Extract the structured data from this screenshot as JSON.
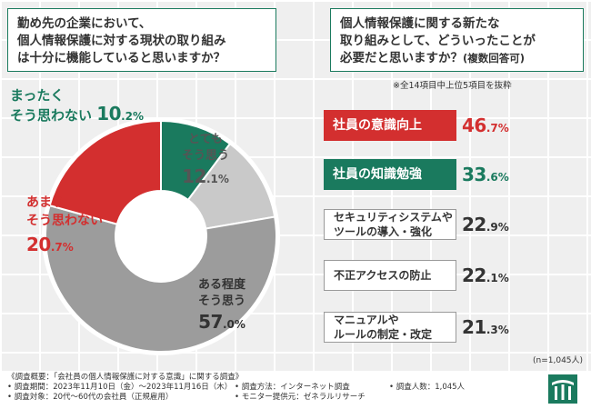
{
  "left_question": {
    "lines": [
      "勤め先の企業において、",
      "個人情報保護に対する現状の取り組み",
      "は十分に機能していると思いますか？"
    ]
  },
  "right_question": {
    "line1": "個人情報保護に関する新たな",
    "line2": "取り組みとして、どういったことが",
    "line3_main": "必要だと思いますか？",
    "line3_sub": "(複数回答可)"
  },
  "excerpt_note": "※全14項目中上位5項目を抜粋",
  "n_note": "(n=1,045人)",
  "colors": {
    "red": "#d32f2f",
    "green": "#1a7a5e",
    "gray_dark": "#9c9c9c",
    "gray_light": "#c9c9c9",
    "pie_bg": "#ffffff"
  },
  "chart_data": [
    {
      "type": "pie",
      "title": "勤め先の企業において、個人情報保護に対する現状の取り組みは十分に機能していると思いますか？",
      "slices": [
        {
          "label_lines": [
            "まったく",
            "そう思わない"
          ],
          "value": 10.2,
          "pct_int": "10",
          "pct_dec": ".2",
          "unit": "%"
        },
        {
          "label_lines": [
            "とても",
            "そう思う"
          ],
          "value": 12.1,
          "pct_int": "12",
          "pct_dec": ".1",
          "unit": "%"
        },
        {
          "label_lines": [
            "ある程度",
            "そう思う"
          ],
          "value": 57.0,
          "pct_int": "57",
          "pct_dec": ".0",
          "unit": "%"
        },
        {
          "label_lines": [
            "あまり",
            "そう思わない"
          ],
          "value": 20.7,
          "pct_int": "20",
          "pct_dec": ".7",
          "unit": "%"
        }
      ]
    },
    {
      "type": "bar",
      "title": "個人情報保護に関する新たな取り組みとして、どういったことが必要だと思いますか？(複数回答可)",
      "items": [
        {
          "label_lines": [
            "社員の意識向上"
          ],
          "value": 46.7,
          "pct_int": "46",
          "pct_dec": ".7",
          "unit": "%"
        },
        {
          "label_lines": [
            "社員の知識勉強"
          ],
          "value": 33.6,
          "pct_int": "33",
          "pct_dec": ".6",
          "unit": "%"
        },
        {
          "label_lines": [
            "セキュリティシステムや",
            "ツールの導入・強化"
          ],
          "value": 22.9,
          "pct_int": "22",
          "pct_dec": ".9",
          "unit": "%"
        },
        {
          "label_lines": [
            "不正アクセスの防止"
          ],
          "value": 22.1,
          "pct_int": "22",
          "pct_dec": ".1",
          "unit": "%"
        },
        {
          "label_lines": [
            "マニュアルや",
            "ルールの制定・改定"
          ],
          "value": 21.3,
          "pct_int": "21",
          "pct_dec": ".3",
          "unit": "%"
        }
      ]
    }
  ],
  "footer": {
    "title": "《調査概要：「会社員の個人情報保護に対する意識」に関する調査》",
    "period": "• 調査期間：2023年11月10日（金）〜2023年11月16日（木）",
    "method": "• 調査方法：インターネット調査",
    "count": "• 調査人数：1,045人",
    "target": "• 調査対象：20代〜60代の会社員（正規雇用）",
    "provider": "• モニター提供元：ゼネラルリサーチ"
  }
}
